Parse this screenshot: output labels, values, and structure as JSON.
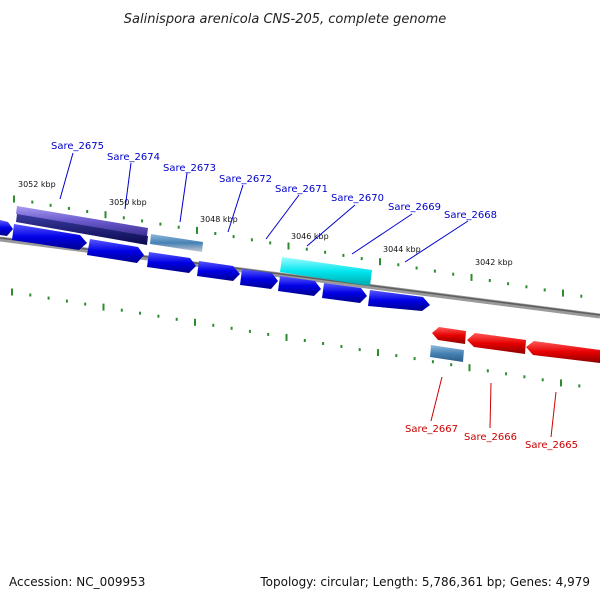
{
  "title": "Salinispora arenicola CNS-205, complete genome",
  "ticks": [
    "3052 kbp",
    "3050 kbp",
    "3048 kbp",
    "3046 kbp",
    "3044 kbp",
    "3042 kbp"
  ],
  "genes_forward": [
    "Sare_2675",
    "Sare_2674",
    "Sare_2673",
    "Sare_2672",
    "Sare_2671",
    "Sare_2670",
    "Sare_2669",
    "Sare_2668"
  ],
  "genes_reverse": [
    "Sare_2667",
    "Sare_2666",
    "Sare_2665"
  ],
  "footer": {
    "accession": "Accession: NC_009953",
    "summary": "Topology: circular; Length: 5,786,361 bp; Genes: 4,979"
  },
  "colors": {
    "forward_cds": "#0000e6",
    "reverse_cds": "#e60000",
    "highlight_cyan": "#00e5ee",
    "highlight_purple": "#6a5acd",
    "steel_blue": "#4682b4",
    "forward_label": "#0000cc",
    "reverse_label": "#cc0000",
    "backbone": "#888888",
    "tick": "#2e8b2e"
  }
}
